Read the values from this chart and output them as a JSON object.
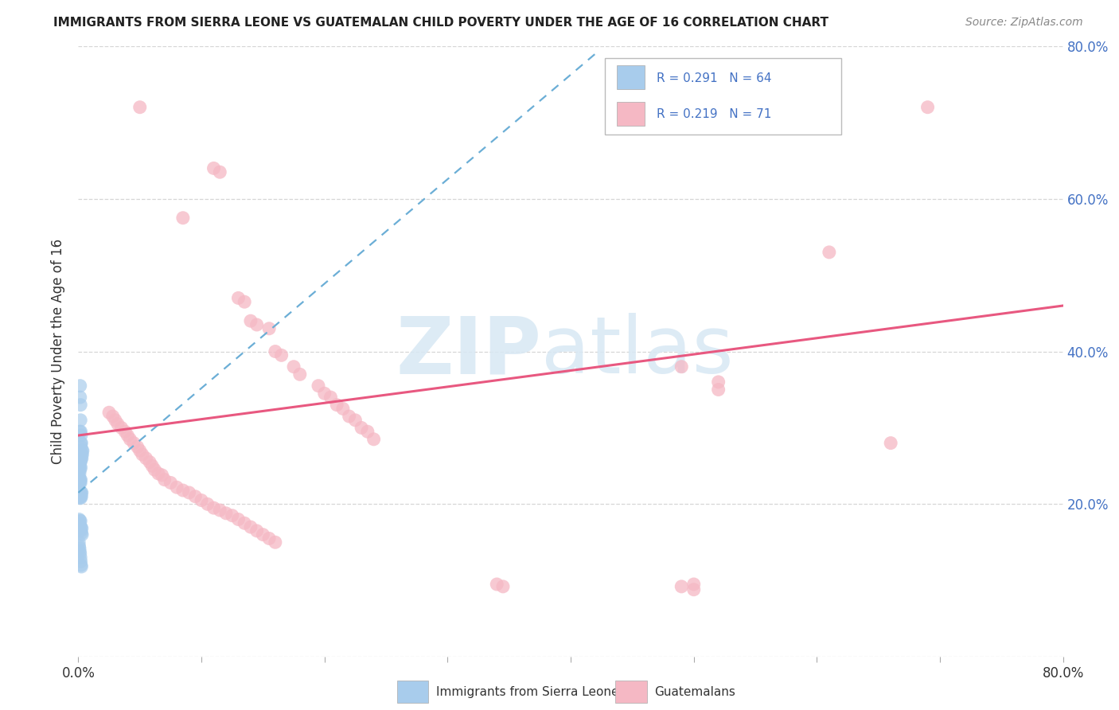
{
  "title": "IMMIGRANTS FROM SIERRA LEONE VS GUATEMALAN CHILD POVERTY UNDER THE AGE OF 16 CORRELATION CHART",
  "source": "Source: ZipAtlas.com",
  "ylabel": "Child Poverty Under the Age of 16",
  "xlim": [
    0.0,
    0.8
  ],
  "ylim": [
    0.0,
    0.8
  ],
  "ytick_values": [
    0.0,
    0.2,
    0.4,
    0.6,
    0.8
  ],
  "ytick_labels_left": [
    "",
    "",
    "",
    "",
    ""
  ],
  "ytick_labels_right": [
    "",
    "20.0%",
    "40.0%",
    "60.0%",
    "80.0%"
  ],
  "xtick_values": [
    0.0,
    0.1,
    0.2,
    0.3,
    0.4,
    0.5,
    0.6,
    0.7,
    0.8
  ],
  "xtick_labels": [
    "0.0%",
    "",
    "",
    "",
    "",
    "",
    "",
    "",
    "80.0%"
  ],
  "legend_label1": "Immigrants from Sierra Leone",
  "legend_label2": "Guatemalans",
  "sierra_leone_color": "#a8ccec",
  "guatemalan_color": "#f5b8c4",
  "trend1_color": "#6baed6",
  "trend2_color": "#e85880",
  "background_color": "#ffffff",
  "grid_color": "#cccccc",
  "tick_color_blue": "#4472c4",
  "watermark_zip": "ZIP",
  "watermark_atlas": "atlas",
  "title_fontsize": 11,
  "source_fontsize": 10,
  "sierra_leone_points": [
    [
      0.001,
      0.26
    ],
    [
      0.0012,
      0.295
    ],
    [
      0.0015,
      0.34
    ],
    [
      0.0015,
      0.355
    ],
    [
      0.0018,
      0.31
    ],
    [
      0.0018,
      0.33
    ],
    [
      0.002,
      0.28
    ],
    [
      0.002,
      0.295
    ],
    [
      0.0022,
      0.275
    ],
    [
      0.0022,
      0.29
    ],
    [
      0.0025,
      0.265
    ],
    [
      0.0025,
      0.28
    ],
    [
      0.0028,
      0.26
    ],
    [
      0.003,
      0.27
    ],
    [
      0.0032,
      0.265
    ],
    [
      0.0035,
      0.27
    ],
    [
      0.0005,
      0.245
    ],
    [
      0.0005,
      0.26
    ],
    [
      0.0007,
      0.25
    ],
    [
      0.0007,
      0.265
    ],
    [
      0.001,
      0.24
    ],
    [
      0.0012,
      0.25
    ],
    [
      0.0015,
      0.245
    ],
    [
      0.0018,
      0.255
    ],
    [
      0.002,
      0.248
    ],
    [
      0.0022,
      0.258
    ],
    [
      0.0003,
      0.23
    ],
    [
      0.0005,
      0.235
    ],
    [
      0.0007,
      0.228
    ],
    [
      0.001,
      0.232
    ],
    [
      0.0012,
      0.228
    ],
    [
      0.0015,
      0.232
    ],
    [
      0.0018,
      0.228
    ],
    [
      0.002,
      0.232
    ],
    [
      0.0005,
      0.21
    ],
    [
      0.0007,
      0.212
    ],
    [
      0.001,
      0.208
    ],
    [
      0.0012,
      0.215
    ],
    [
      0.0015,
      0.21
    ],
    [
      0.0018,
      0.215
    ],
    [
      0.002,
      0.208
    ],
    [
      0.0022,
      0.215
    ],
    [
      0.0025,
      0.21
    ],
    [
      0.0028,
      0.215
    ],
    [
      0.0005,
      0.175
    ],
    [
      0.0007,
      0.18
    ],
    [
      0.001,
      0.172
    ],
    [
      0.0012,
      0.178
    ],
    [
      0.0015,
      0.172
    ],
    [
      0.0018,
      0.178
    ],
    [
      0.002,
      0.165
    ],
    [
      0.0022,
      0.17
    ],
    [
      0.0025,
      0.162
    ],
    [
      0.0028,
      0.168
    ],
    [
      0.003,
      0.16
    ],
    [
      0.0005,
      0.15
    ],
    [
      0.0007,
      0.145
    ],
    [
      0.001,
      0.142
    ],
    [
      0.0012,
      0.138
    ],
    [
      0.0015,
      0.135
    ],
    [
      0.0018,
      0.13
    ],
    [
      0.002,
      0.125
    ],
    [
      0.0022,
      0.12
    ],
    [
      0.0025,
      0.118
    ]
  ],
  "guatemalan_points": [
    [
      0.05,
      0.72
    ],
    [
      0.11,
      0.64
    ],
    [
      0.115,
      0.635
    ],
    [
      0.085,
      0.575
    ],
    [
      0.13,
      0.47
    ],
    [
      0.135,
      0.465
    ],
    [
      0.14,
      0.44
    ],
    [
      0.145,
      0.435
    ],
    [
      0.155,
      0.43
    ],
    [
      0.16,
      0.4
    ],
    [
      0.165,
      0.395
    ],
    [
      0.175,
      0.38
    ],
    [
      0.18,
      0.37
    ],
    [
      0.195,
      0.355
    ],
    [
      0.2,
      0.345
    ],
    [
      0.205,
      0.34
    ],
    [
      0.21,
      0.33
    ],
    [
      0.215,
      0.325
    ],
    [
      0.22,
      0.315
    ],
    [
      0.225,
      0.31
    ],
    [
      0.23,
      0.3
    ],
    [
      0.235,
      0.295
    ],
    [
      0.24,
      0.285
    ],
    [
      0.025,
      0.32
    ],
    [
      0.028,
      0.315
    ],
    [
      0.03,
      0.31
    ],
    [
      0.032,
      0.305
    ],
    [
      0.035,
      0.3
    ],
    [
      0.038,
      0.295
    ],
    [
      0.04,
      0.29
    ],
    [
      0.042,
      0.285
    ],
    [
      0.045,
      0.28
    ],
    [
      0.048,
      0.275
    ],
    [
      0.05,
      0.27
    ],
    [
      0.052,
      0.265
    ],
    [
      0.055,
      0.26
    ],
    [
      0.058,
      0.255
    ],
    [
      0.06,
      0.25
    ],
    [
      0.062,
      0.245
    ],
    [
      0.065,
      0.24
    ],
    [
      0.068,
      0.238
    ],
    [
      0.07,
      0.232
    ],
    [
      0.075,
      0.228
    ],
    [
      0.08,
      0.222
    ],
    [
      0.085,
      0.218
    ],
    [
      0.09,
      0.215
    ],
    [
      0.095,
      0.21
    ],
    [
      0.1,
      0.205
    ],
    [
      0.105,
      0.2
    ],
    [
      0.11,
      0.195
    ],
    [
      0.115,
      0.192
    ],
    [
      0.12,
      0.188
    ],
    [
      0.125,
      0.185
    ],
    [
      0.13,
      0.18
    ],
    [
      0.135,
      0.175
    ],
    [
      0.14,
      0.17
    ],
    [
      0.145,
      0.165
    ],
    [
      0.15,
      0.16
    ],
    [
      0.155,
      0.155
    ],
    [
      0.16,
      0.15
    ],
    [
      0.34,
      0.095
    ],
    [
      0.345,
      0.092
    ],
    [
      0.49,
      0.38
    ],
    [
      0.52,
      0.35
    ],
    [
      0.61,
      0.53
    ],
    [
      0.69,
      0.72
    ],
    [
      0.66,
      0.28
    ],
    [
      0.52,
      0.36
    ],
    [
      0.5,
      0.095
    ],
    [
      0.49,
      0.092
    ],
    [
      0.5,
      0.088
    ]
  ],
  "trend1_x0": 0.0,
  "trend1_x1": 0.42,
  "trend1_y0": 0.215,
  "trend1_y1": 0.79,
  "trend2_x0": 0.0,
  "trend2_x1": 0.8,
  "trend2_y0": 0.29,
  "trend2_y1": 0.46
}
